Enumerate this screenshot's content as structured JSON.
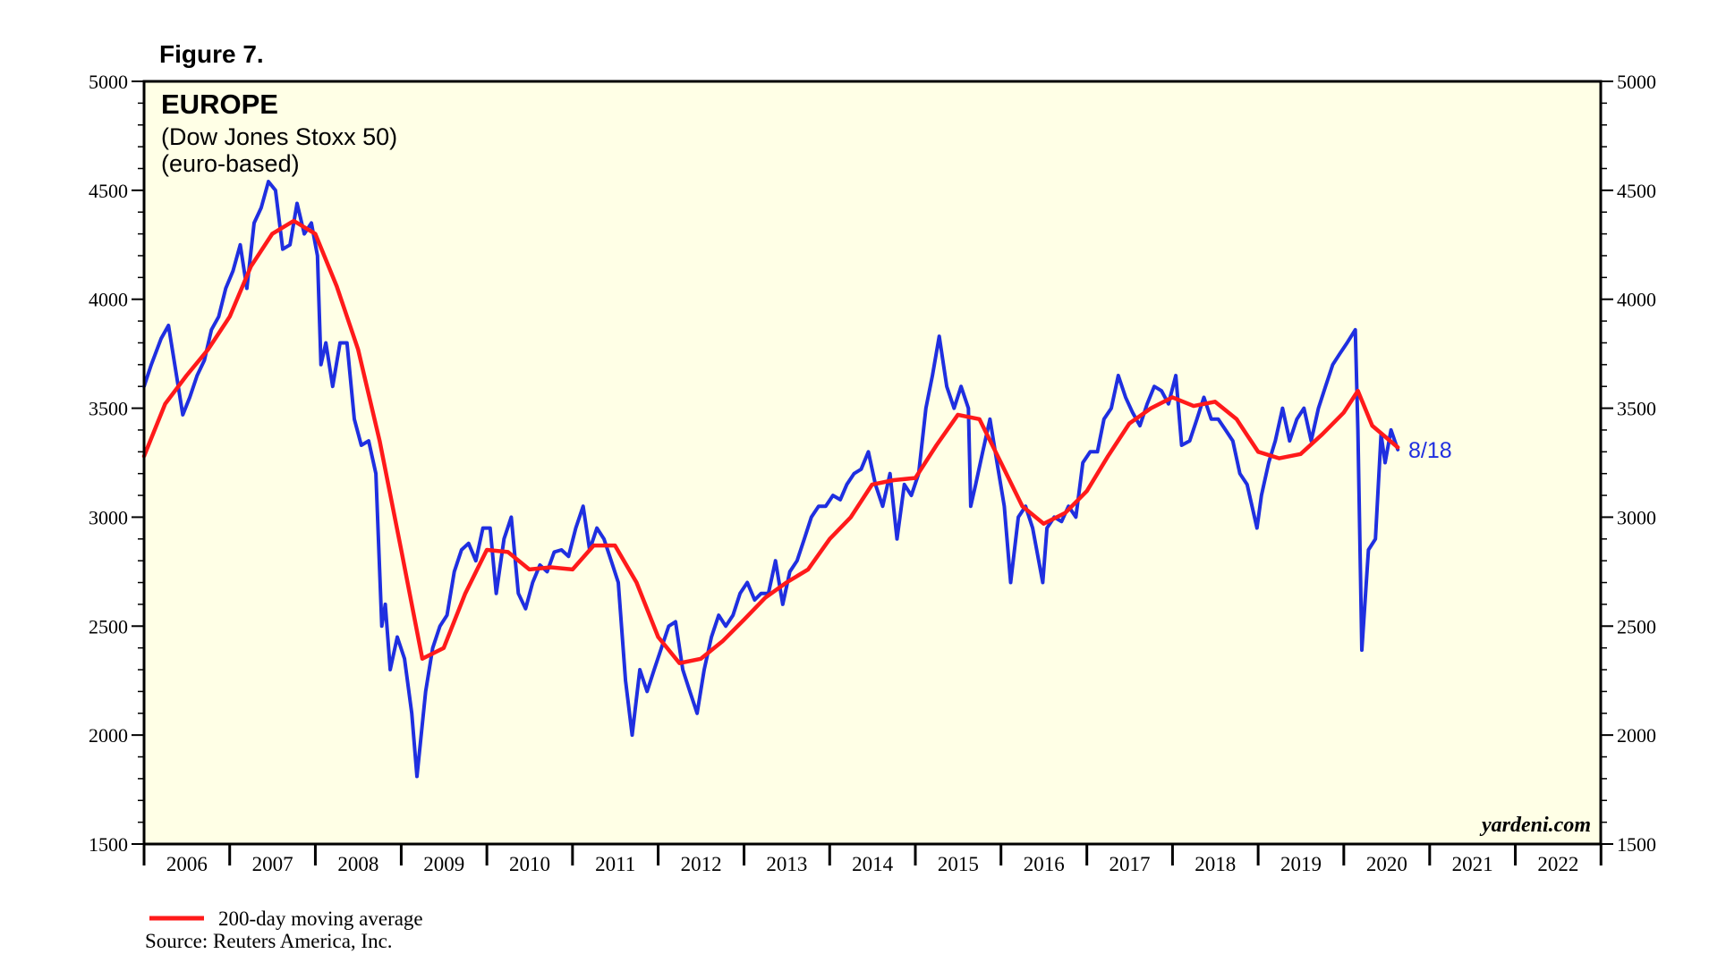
{
  "figure_label": "Figure 7.",
  "credit": "yardeni.com",
  "legend_label": "200-day moving average",
  "source": "Source: Reuters America, Inc.",
  "colors": {
    "index": "#1f2fe0",
    "moving_average": "#ff1a1a",
    "plot_background": "#ffffe6"
  },
  "chart_data": {
    "type": "line",
    "title": "EUROPE",
    "subtitle": [
      "(Dow Jones Stoxx 50)",
      "(euro-based)"
    ],
    "xlabel": "",
    "ylabel": "",
    "ylim": [
      1500,
      5000
    ],
    "yticks": [
      1500,
      2000,
      2500,
      3000,
      3500,
      4000,
      4500,
      5000
    ],
    "xlim": [
      "2006-01-01",
      "2022-12-31"
    ],
    "xtick_labels": [
      "2006",
      "2007",
      "2008",
      "2009",
      "2010",
      "2011",
      "2012",
      "2013",
      "2014",
      "2015",
      "2016",
      "2017",
      "2018",
      "2019",
      "2020",
      "2021",
      "2022"
    ],
    "grid": false,
    "annotation": "8/18",
    "series": [
      {
        "name": "",
        "color": "#1f2fe0",
        "points": [
          [
            "2006-01-01",
            3600
          ],
          [
            "2006-02-01",
            3700
          ],
          [
            "2006-03-15",
            3820
          ],
          [
            "2006-04-15",
            3880
          ],
          [
            "2006-05-15",
            3680
          ],
          [
            "2006-06-15",
            3470
          ],
          [
            "2006-07-15",
            3550
          ],
          [
            "2006-08-15",
            3650
          ],
          [
            "2006-09-15",
            3720
          ],
          [
            "2006-10-15",
            3860
          ],
          [
            "2006-11-15",
            3920
          ],
          [
            "2006-12-15",
            4050
          ],
          [
            "2007-01-15",
            4130
          ],
          [
            "2007-02-15",
            4250
          ],
          [
            "2007-03-15",
            4050
          ],
          [
            "2007-04-15",
            4350
          ],
          [
            "2007-05-15",
            4420
          ],
          [
            "2007-06-15",
            4540
          ],
          [
            "2007-07-15",
            4500
          ],
          [
            "2007-08-15",
            4230
          ],
          [
            "2007-09-15",
            4250
          ],
          [
            "2007-10-15",
            4440
          ],
          [
            "2007-11-15",
            4300
          ],
          [
            "2007-12-15",
            4350
          ],
          [
            "2008-01-10",
            4200
          ],
          [
            "2008-01-25",
            3700
          ],
          [
            "2008-02-15",
            3800
          ],
          [
            "2008-03-15",
            3600
          ],
          [
            "2008-04-15",
            3800
          ],
          [
            "2008-05-15",
            3800
          ],
          [
            "2008-06-15",
            3450
          ],
          [
            "2008-07-15",
            3330
          ],
          [
            "2008-08-15",
            3350
          ],
          [
            "2008-09-15",
            3200
          ],
          [
            "2008-10-10",
            2500
          ],
          [
            "2008-10-25",
            2600
          ],
          [
            "2008-11-15",
            2300
          ],
          [
            "2008-12-15",
            2450
          ],
          [
            "2009-01-15",
            2350
          ],
          [
            "2009-02-15",
            2100
          ],
          [
            "2009-03-09",
            1810
          ],
          [
            "2009-04-15",
            2200
          ],
          [
            "2009-05-15",
            2400
          ],
          [
            "2009-06-15",
            2500
          ],
          [
            "2009-07-15",
            2550
          ],
          [
            "2009-08-15",
            2750
          ],
          [
            "2009-09-15",
            2850
          ],
          [
            "2009-10-15",
            2880
          ],
          [
            "2009-11-15",
            2800
          ],
          [
            "2009-12-15",
            2950
          ],
          [
            "2010-01-15",
            2950
          ],
          [
            "2010-02-10",
            2650
          ],
          [
            "2010-03-15",
            2900
          ],
          [
            "2010-04-15",
            3000
          ],
          [
            "2010-05-15",
            2650
          ],
          [
            "2010-06-15",
            2580
          ],
          [
            "2010-07-15",
            2700
          ],
          [
            "2010-08-15",
            2780
          ],
          [
            "2010-09-15",
            2750
          ],
          [
            "2010-10-15",
            2840
          ],
          [
            "2010-11-15",
            2850
          ],
          [
            "2010-12-15",
            2820
          ],
          [
            "2011-01-15",
            2950
          ],
          [
            "2011-02-15",
            3050
          ],
          [
            "2011-03-15",
            2850
          ],
          [
            "2011-04-15",
            2950
          ],
          [
            "2011-05-15",
            2900
          ],
          [
            "2011-06-15",
            2800
          ],
          [
            "2011-07-15",
            2700
          ],
          [
            "2011-08-15",
            2250
          ],
          [
            "2011-09-12",
            2000
          ],
          [
            "2011-10-15",
            2300
          ],
          [
            "2011-11-15",
            2200
          ],
          [
            "2011-12-15",
            2300
          ],
          [
            "2012-01-15",
            2400
          ],
          [
            "2012-02-15",
            2500
          ],
          [
            "2012-03-15",
            2520
          ],
          [
            "2012-04-15",
            2300
          ],
          [
            "2012-05-15",
            2200
          ],
          [
            "2012-06-15",
            2100
          ],
          [
            "2012-07-15",
            2300
          ],
          [
            "2012-08-15",
            2450
          ],
          [
            "2012-09-15",
            2550
          ],
          [
            "2012-10-15",
            2500
          ],
          [
            "2012-11-15",
            2550
          ],
          [
            "2012-12-15",
            2650
          ],
          [
            "2013-01-15",
            2700
          ],
          [
            "2013-02-15",
            2620
          ],
          [
            "2013-03-15",
            2650
          ],
          [
            "2013-04-15",
            2650
          ],
          [
            "2013-05-15",
            2800
          ],
          [
            "2013-06-15",
            2600
          ],
          [
            "2013-07-15",
            2750
          ],
          [
            "2013-08-15",
            2800
          ],
          [
            "2013-09-15",
            2900
          ],
          [
            "2013-10-15",
            3000
          ],
          [
            "2013-11-15",
            3050
          ],
          [
            "2013-12-15",
            3050
          ],
          [
            "2014-01-15",
            3100
          ],
          [
            "2014-02-15",
            3080
          ],
          [
            "2014-03-15",
            3150
          ],
          [
            "2014-04-15",
            3200
          ],
          [
            "2014-05-15",
            3220
          ],
          [
            "2014-06-15",
            3300
          ],
          [
            "2014-07-15",
            3150
          ],
          [
            "2014-08-15",
            3050
          ],
          [
            "2014-09-15",
            3200
          ],
          [
            "2014-10-15",
            2900
          ],
          [
            "2014-11-15",
            3150
          ],
          [
            "2014-12-15",
            3100
          ],
          [
            "2015-01-15",
            3200
          ],
          [
            "2015-02-15",
            3500
          ],
          [
            "2015-03-15",
            3650
          ],
          [
            "2015-04-13",
            3830
          ],
          [
            "2015-05-15",
            3600
          ],
          [
            "2015-06-15",
            3500
          ],
          [
            "2015-07-15",
            3600
          ],
          [
            "2015-08-15",
            3500
          ],
          [
            "2015-08-25",
            3050
          ],
          [
            "2015-09-15",
            3150
          ],
          [
            "2015-10-15",
            3300
          ],
          [
            "2015-11-15",
            3450
          ],
          [
            "2015-12-15",
            3250
          ],
          [
            "2016-01-15",
            3050
          ],
          [
            "2016-02-11",
            2700
          ],
          [
            "2016-03-15",
            3000
          ],
          [
            "2016-04-15",
            3050
          ],
          [
            "2016-05-15",
            2950
          ],
          [
            "2016-06-27",
            2700
          ],
          [
            "2016-07-15",
            2950
          ],
          [
            "2016-08-15",
            3000
          ],
          [
            "2016-09-15",
            2980
          ],
          [
            "2016-10-15",
            3050
          ],
          [
            "2016-11-15",
            3000
          ],
          [
            "2016-12-15",
            3250
          ],
          [
            "2017-01-15",
            3300
          ],
          [
            "2017-02-15",
            3300
          ],
          [
            "2017-03-15",
            3450
          ],
          [
            "2017-04-15",
            3500
          ],
          [
            "2017-05-15",
            3650
          ],
          [
            "2017-06-15",
            3550
          ],
          [
            "2017-07-15",
            3480
          ],
          [
            "2017-08-15",
            3420
          ],
          [
            "2017-09-15",
            3520
          ],
          [
            "2017-10-15",
            3600
          ],
          [
            "2017-11-15",
            3580
          ],
          [
            "2017-12-15",
            3520
          ],
          [
            "2018-01-15",
            3650
          ],
          [
            "2018-02-09",
            3330
          ],
          [
            "2018-03-15",
            3350
          ],
          [
            "2018-04-15",
            3450
          ],
          [
            "2018-05-15",
            3550
          ],
          [
            "2018-06-15",
            3450
          ],
          [
            "2018-07-15",
            3450
          ],
          [
            "2018-08-15",
            3400
          ],
          [
            "2018-09-15",
            3350
          ],
          [
            "2018-10-15",
            3200
          ],
          [
            "2018-11-15",
            3150
          ],
          [
            "2018-12-27",
            2950
          ],
          [
            "2019-01-15",
            3100
          ],
          [
            "2019-02-15",
            3250
          ],
          [
            "2019-03-15",
            3350
          ],
          [
            "2019-04-15",
            3500
          ],
          [
            "2019-05-15",
            3350
          ],
          [
            "2019-06-15",
            3450
          ],
          [
            "2019-07-15",
            3500
          ],
          [
            "2019-08-15",
            3350
          ],
          [
            "2019-09-15",
            3500
          ],
          [
            "2019-10-15",
            3600
          ],
          [
            "2019-11-15",
            3700
          ],
          [
            "2019-12-15",
            3750
          ],
          [
            "2020-01-15",
            3800
          ],
          [
            "2020-02-19",
            3860
          ],
          [
            "2020-03-01",
            3400
          ],
          [
            "2020-03-18",
            2390
          ],
          [
            "2020-04-15",
            2850
          ],
          [
            "2020-05-15",
            2900
          ],
          [
            "2020-06-08",
            3380
          ],
          [
            "2020-06-25",
            3250
          ],
          [
            "2020-07-20",
            3400
          ],
          [
            "2020-08-18",
            3310
          ]
        ]
      },
      {
        "name": "200-day moving average",
        "color": "#ff1a1a",
        "points": [
          [
            "2006-01-01",
            3280
          ],
          [
            "2006-04-01",
            3520
          ],
          [
            "2006-07-01",
            3650
          ],
          [
            "2006-10-01",
            3770
          ],
          [
            "2007-01-01",
            3920
          ],
          [
            "2007-04-01",
            4150
          ],
          [
            "2007-07-01",
            4300
          ],
          [
            "2007-10-01",
            4360
          ],
          [
            "2008-01-01",
            4300
          ],
          [
            "2008-04-01",
            4060
          ],
          [
            "2008-07-01",
            3770
          ],
          [
            "2008-10-01",
            3350
          ],
          [
            "2009-01-01",
            2850
          ],
          [
            "2009-04-01",
            2350
          ],
          [
            "2009-07-01",
            2400
          ],
          [
            "2009-10-01",
            2650
          ],
          [
            "2010-01-01",
            2850
          ],
          [
            "2010-04-01",
            2840
          ],
          [
            "2010-07-01",
            2760
          ],
          [
            "2010-10-01",
            2770
          ],
          [
            "2011-01-01",
            2760
          ],
          [
            "2011-04-01",
            2870
          ],
          [
            "2011-07-01",
            2870
          ],
          [
            "2011-10-01",
            2700
          ],
          [
            "2012-01-01",
            2450
          ],
          [
            "2012-04-01",
            2330
          ],
          [
            "2012-07-01",
            2350
          ],
          [
            "2012-10-01",
            2430
          ],
          [
            "2013-01-01",
            2530
          ],
          [
            "2013-04-01",
            2630
          ],
          [
            "2013-07-01",
            2700
          ],
          [
            "2013-10-01",
            2760
          ],
          [
            "2014-01-01",
            2900
          ],
          [
            "2014-04-01",
            3000
          ],
          [
            "2014-07-01",
            3150
          ],
          [
            "2014-10-01",
            3170
          ],
          [
            "2015-01-01",
            3180
          ],
          [
            "2015-04-01",
            3330
          ],
          [
            "2015-07-01",
            3470
          ],
          [
            "2015-10-01",
            3450
          ],
          [
            "2016-01-01",
            3250
          ],
          [
            "2016-04-01",
            3050
          ],
          [
            "2016-07-01",
            2970
          ],
          [
            "2016-10-01",
            3020
          ],
          [
            "2017-01-01",
            3120
          ],
          [
            "2017-04-01",
            3280
          ],
          [
            "2017-07-01",
            3430
          ],
          [
            "2017-10-01",
            3500
          ],
          [
            "2018-01-01",
            3550
          ],
          [
            "2018-04-01",
            3510
          ],
          [
            "2018-07-01",
            3530
          ],
          [
            "2018-10-01",
            3450
          ],
          [
            "2019-01-01",
            3300
          ],
          [
            "2019-04-01",
            3270
          ],
          [
            "2019-07-01",
            3290
          ],
          [
            "2019-10-01",
            3380
          ],
          [
            "2020-01-01",
            3480
          ],
          [
            "2020-03-01",
            3580
          ],
          [
            "2020-05-01",
            3420
          ],
          [
            "2020-08-18",
            3320
          ]
        ]
      }
    ]
  }
}
